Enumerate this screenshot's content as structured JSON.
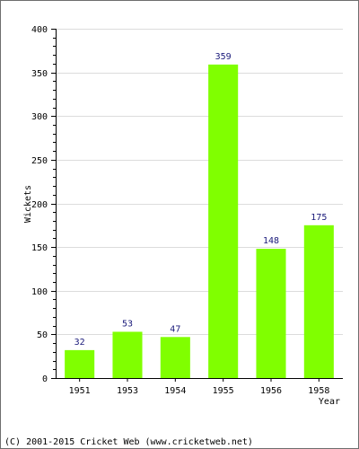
{
  "chart_data": {
    "type": "bar",
    "categories": [
      "1951",
      "1953",
      "1954",
      "1955",
      "1956",
      "1958"
    ],
    "values": [
      32,
      53,
      47,
      359,
      148,
      175
    ],
    "data_labels": [
      "32",
      "53",
      "47",
      "359",
      "148",
      "175"
    ],
    "title": "",
    "xlabel": "Year",
    "ylabel": "Wickets",
    "ylim": [
      0,
      400
    ],
    "yticks": [
      0,
      50,
      100,
      150,
      200,
      250,
      300,
      350,
      400
    ],
    "grid": true,
    "bar_color": "#80ff00",
    "grid_color": "#dcdcdc"
  },
  "footer": {
    "credit": "(C) 2001-2015 Cricket Web (www.cricketweb.net)"
  }
}
